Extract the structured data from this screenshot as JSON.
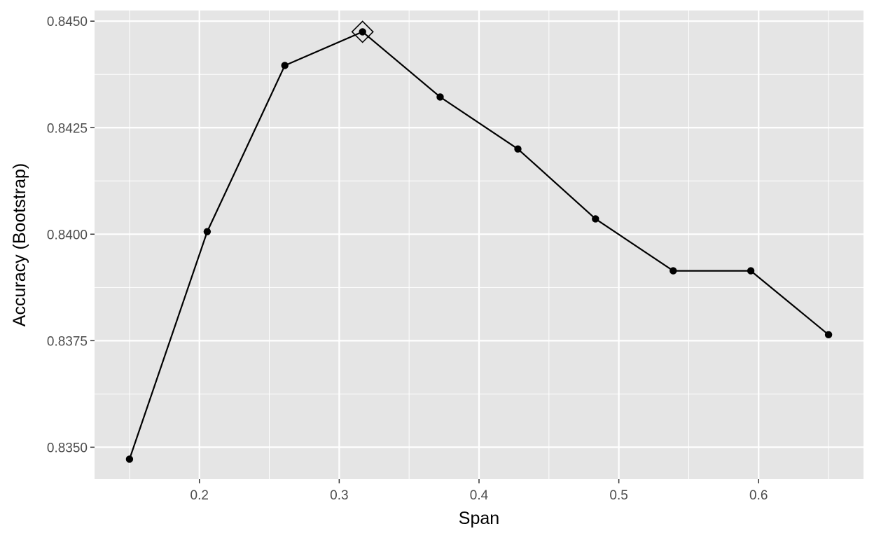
{
  "chart_data": {
    "type": "line",
    "title": "",
    "xlabel": "Span",
    "ylabel": "Accuracy (Bootstrap)",
    "xlim": [
      0.125,
      0.675
    ],
    "ylim": [
      0.83425,
      0.84525
    ],
    "x_ticks": [
      {
        "value": 0.2,
        "label": "0.2"
      },
      {
        "value": 0.3,
        "label": "0.3"
      },
      {
        "value": 0.4,
        "label": "0.4"
      },
      {
        "value": 0.5,
        "label": "0.5"
      },
      {
        "value": 0.6,
        "label": "0.6"
      }
    ],
    "y_ticks": [
      {
        "value": 0.835,
        "label": "0.8350"
      },
      {
        "value": 0.8375,
        "label": "0.8375"
      },
      {
        "value": 0.84,
        "label": "0.8400"
      },
      {
        "value": 0.8425,
        "label": "0.8425"
      },
      {
        "value": 0.845,
        "label": "0.8450"
      }
    ],
    "grid": true,
    "series": [
      {
        "x": [
          0.15,
          0.2056,
          0.2611,
          0.3167,
          0.3722,
          0.4278,
          0.4833,
          0.5389,
          0.5944,
          0.65
        ],
        "y": [
          0.83472,
          0.84006,
          0.84396,
          0.84475,
          0.84322,
          0.842,
          0.84036,
          0.83914,
          0.83914,
          0.83764
        ],
        "color": "#000000"
      }
    ],
    "best_point_index": 3,
    "colors": {
      "panel_background": "#e5e5e5",
      "grid_line": "#ffffff",
      "line": "#000000",
      "point": "#000000",
      "tick_text": "#4d4d4d",
      "axis_title": "#000000"
    }
  }
}
